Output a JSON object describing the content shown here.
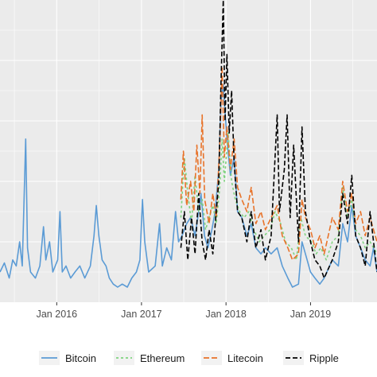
{
  "chart_data": {
    "type": "line",
    "title": "",
    "xlabel": "",
    "ylabel": "",
    "x_range": [
      "2015-05-01",
      "2019-10-15"
    ],
    "ylim": [
      0,
      100
    ],
    "grid": true,
    "background": "#EBEBEB",
    "legend_position": "bottom",
    "x_ticks": [
      {
        "label": "Jan 2016",
        "date": "2016-01-01"
      },
      {
        "label": "Jan 2017",
        "date": "2017-01-01"
      },
      {
        "label": "Jan 2018",
        "date": "2018-01-01"
      },
      {
        "label": "Jan 2019",
        "date": "2019-01-01"
      }
    ],
    "series": [
      {
        "name": "Bitcoin",
        "color": "#5B9BD5",
        "dash": "solid",
        "points": [
          [
            "2015-05-01",
            10
          ],
          [
            "2015-05-20",
            13
          ],
          [
            "2015-06-10",
            8
          ],
          [
            "2015-06-25",
            14
          ],
          [
            "2015-07-10",
            12
          ],
          [
            "2015-07-25",
            20
          ],
          [
            "2015-08-05",
            12
          ],
          [
            "2015-08-20",
            54
          ],
          [
            "2015-08-28",
            18
          ],
          [
            "2015-09-10",
            10
          ],
          [
            "2015-10-01",
            8
          ],
          [
            "2015-10-20",
            12
          ],
          [
            "2015-11-05",
            25
          ],
          [
            "2015-11-15",
            14
          ],
          [
            "2015-12-01",
            20
          ],
          [
            "2015-12-15",
            10
          ],
          [
            "2016-01-05",
            14
          ],
          [
            "2016-01-15",
            30
          ],
          [
            "2016-01-25",
            10
          ],
          [
            "2016-02-10",
            12
          ],
          [
            "2016-03-01",
            8
          ],
          [
            "2016-03-20",
            10
          ],
          [
            "2016-04-10",
            12
          ],
          [
            "2016-05-01",
            8
          ],
          [
            "2016-05-25",
            12
          ],
          [
            "2016-06-10",
            22
          ],
          [
            "2016-06-20",
            32
          ],
          [
            "2016-07-01",
            22
          ],
          [
            "2016-07-15",
            14
          ],
          [
            "2016-08-01",
            12
          ],
          [
            "2016-08-15",
            8
          ],
          [
            "2016-09-01",
            6
          ],
          [
            "2016-09-20",
            5
          ],
          [
            "2016-10-10",
            6
          ],
          [
            "2016-11-01",
            5
          ],
          [
            "2016-11-20",
            8
          ],
          [
            "2016-12-10",
            10
          ],
          [
            "2016-12-25",
            14
          ],
          [
            "2017-01-05",
            34
          ],
          [
            "2017-01-15",
            20
          ],
          [
            "2017-02-01",
            10
          ],
          [
            "2017-03-01",
            12
          ],
          [
            "2017-03-20",
            26
          ],
          [
            "2017-04-01",
            12
          ],
          [
            "2017-04-20",
            18
          ],
          [
            "2017-05-10",
            14
          ],
          [
            "2017-05-28",
            30
          ],
          [
            "2017-06-10",
            20
          ],
          [
            "2017-06-25",
            22
          ],
          [
            "2017-07-15",
            26
          ],
          [
            "2017-08-01",
            28
          ],
          [
            "2017-08-20",
            22
          ],
          [
            "2017-09-05",
            30
          ],
          [
            "2017-09-15",
            36
          ],
          [
            "2017-09-30",
            22
          ],
          [
            "2017-10-15",
            18
          ],
          [
            "2017-11-01",
            24
          ],
          [
            "2017-11-15",
            30
          ],
          [
            "2017-12-01",
            44
          ],
          [
            "2017-12-10",
            66
          ],
          [
            "2017-12-20",
            72
          ],
          [
            "2018-01-05",
            54
          ],
          [
            "2018-01-20",
            42
          ],
          [
            "2018-02-05",
            48
          ],
          [
            "2018-02-20",
            30
          ],
          [
            "2018-03-10",
            28
          ],
          [
            "2018-04-01",
            22
          ],
          [
            "2018-04-20",
            26
          ],
          [
            "2018-05-10",
            18
          ],
          [
            "2018-06-01",
            16
          ],
          [
            "2018-06-20",
            18
          ],
          [
            "2018-07-15",
            16
          ],
          [
            "2018-08-10",
            18
          ],
          [
            "2018-09-01",
            12
          ],
          [
            "2018-09-25",
            8
          ],
          [
            "2018-10-15",
            5
          ],
          [
            "2018-11-10",
            6
          ],
          [
            "2018-11-25",
            20
          ],
          [
            "2018-12-10",
            16
          ],
          [
            "2019-01-01",
            10
          ],
          [
            "2019-01-20",
            8
          ],
          [
            "2019-02-10",
            6
          ],
          [
            "2019-03-01",
            8
          ],
          [
            "2019-04-05",
            14
          ],
          [
            "2019-05-01",
            12
          ],
          [
            "2019-05-20",
            26
          ],
          [
            "2019-06-10",
            20
          ],
          [
            "2019-06-28",
            32
          ],
          [
            "2019-07-15",
            22
          ],
          [
            "2019-08-05",
            18
          ],
          [
            "2019-08-25",
            14
          ],
          [
            "2019-09-15",
            12
          ],
          [
            "2019-09-30",
            18
          ],
          [
            "2019-10-15",
            10
          ]
        ]
      },
      {
        "name": "Ethereum",
        "color": "#7FD37F",
        "dash": "3,3",
        "points": [
          [
            "2017-06-20",
            28
          ],
          [
            "2017-07-05",
            48
          ],
          [
            "2017-07-20",
            36
          ],
          [
            "2017-08-05",
            26
          ],
          [
            "2017-08-20",
            42
          ],
          [
            "2017-09-05",
            30
          ],
          [
            "2017-09-20",
            34
          ],
          [
            "2017-10-05",
            24
          ],
          [
            "2017-10-20",
            28
          ],
          [
            "2017-11-05",
            32
          ],
          [
            "2017-11-20",
            26
          ],
          [
            "2017-12-05",
            38
          ],
          [
            "2017-12-15",
            54
          ],
          [
            "2017-12-25",
            40
          ],
          [
            "2018-01-10",
            56
          ],
          [
            "2018-01-25",
            40
          ],
          [
            "2018-02-10",
            34
          ],
          [
            "2018-03-01",
            30
          ],
          [
            "2018-03-20",
            28
          ],
          [
            "2018-04-10",
            30
          ],
          [
            "2018-05-01",
            24
          ],
          [
            "2018-05-25",
            20
          ],
          [
            "2018-06-15",
            22
          ],
          [
            "2018-07-10",
            24
          ],
          [
            "2018-08-01",
            30
          ],
          [
            "2018-08-25",
            26
          ],
          [
            "2018-09-15",
            20
          ],
          [
            "2018-10-10",
            18
          ],
          [
            "2018-11-01",
            14
          ],
          [
            "2018-11-20",
            28
          ],
          [
            "2018-12-10",
            22
          ],
          [
            "2019-01-05",
            20
          ],
          [
            "2019-01-25",
            16
          ],
          [
            "2019-02-15",
            18
          ],
          [
            "2019-03-10",
            14
          ],
          [
            "2019-04-05",
            20
          ],
          [
            "2019-05-01",
            22
          ],
          [
            "2019-05-20",
            38
          ],
          [
            "2019-06-10",
            28
          ],
          [
            "2019-06-28",
            34
          ],
          [
            "2019-07-15",
            24
          ],
          [
            "2019-08-05",
            22
          ],
          [
            "2019-08-25",
            18
          ],
          [
            "2019-09-15",
            20
          ],
          [
            "2019-10-15",
            16
          ]
        ]
      },
      {
        "name": "Litecoin",
        "color": "#E8732A",
        "dash": "7,3",
        "points": [
          [
            "2017-06-20",
            34
          ],
          [
            "2017-07-01",
            50
          ],
          [
            "2017-07-15",
            32
          ],
          [
            "2017-08-01",
            40
          ],
          [
            "2017-08-15",
            30
          ],
          [
            "2017-08-28",
            52
          ],
          [
            "2017-09-10",
            36
          ],
          [
            "2017-09-20",
            62
          ],
          [
            "2017-10-01",
            34
          ],
          [
            "2017-10-20",
            26
          ],
          [
            "2017-11-05",
            36
          ],
          [
            "2017-11-20",
            28
          ],
          [
            "2017-12-05",
            52
          ],
          [
            "2017-12-15",
            78
          ],
          [
            "2017-12-25",
            48
          ],
          [
            "2018-01-05",
            58
          ],
          [
            "2018-01-20",
            44
          ],
          [
            "2018-02-05",
            54
          ],
          [
            "2018-02-20",
            38
          ],
          [
            "2018-03-10",
            34
          ],
          [
            "2018-04-01",
            30
          ],
          [
            "2018-04-20",
            38
          ],
          [
            "2018-05-10",
            26
          ],
          [
            "2018-06-01",
            30
          ],
          [
            "2018-06-20",
            24
          ],
          [
            "2018-07-15",
            28
          ],
          [
            "2018-08-10",
            32
          ],
          [
            "2018-09-01",
            22
          ],
          [
            "2018-09-25",
            18
          ],
          [
            "2018-10-15",
            14
          ],
          [
            "2018-11-10",
            16
          ],
          [
            "2018-11-25",
            34
          ],
          [
            "2018-12-10",
            28
          ],
          [
            "2019-01-01",
            24
          ],
          [
            "2019-01-20",
            18
          ],
          [
            "2019-02-10",
            22
          ],
          [
            "2019-03-01",
            16
          ],
          [
            "2019-04-05",
            28
          ],
          [
            "2019-05-01",
            24
          ],
          [
            "2019-05-20",
            40
          ],
          [
            "2019-06-10",
            30
          ],
          [
            "2019-06-28",
            36
          ],
          [
            "2019-07-15",
            26
          ],
          [
            "2019-08-05",
            30
          ],
          [
            "2019-08-25",
            22
          ],
          [
            "2019-09-15",
            28
          ],
          [
            "2019-10-15",
            20
          ]
        ]
      },
      {
        "name": "Ripple",
        "color": "#000000",
        "dash": "6,3",
        "points": [
          [
            "2017-06-20",
            18
          ],
          [
            "2017-07-05",
            30
          ],
          [
            "2017-07-20",
            14
          ],
          [
            "2017-08-05",
            28
          ],
          [
            "2017-08-20",
            16
          ],
          [
            "2017-09-05",
            36
          ],
          [
            "2017-09-20",
            20
          ],
          [
            "2017-10-05",
            14
          ],
          [
            "2017-10-20",
            24
          ],
          [
            "2017-11-05",
            16
          ],
          [
            "2017-11-20",
            30
          ],
          [
            "2017-12-01",
            40
          ],
          [
            "2017-12-10",
            72
          ],
          [
            "2017-12-20",
            100
          ],
          [
            "2017-12-28",
            60
          ],
          [
            "2018-01-05",
            82
          ],
          [
            "2018-01-15",
            56
          ],
          [
            "2018-01-25",
            70
          ],
          [
            "2018-02-05",
            46
          ],
          [
            "2018-02-20",
            30
          ],
          [
            "2018-03-10",
            28
          ],
          [
            "2018-04-01",
            20
          ],
          [
            "2018-04-20",
            30
          ],
          [
            "2018-05-10",
            18
          ],
          [
            "2018-06-01",
            24
          ],
          [
            "2018-06-20",
            14
          ],
          [
            "2018-07-15",
            22
          ],
          [
            "2018-08-10",
            62
          ],
          [
            "2018-08-20",
            30
          ],
          [
            "2018-09-10",
            44
          ],
          [
            "2018-09-22",
            62
          ],
          [
            "2018-10-05",
            28
          ],
          [
            "2018-10-20",
            52
          ],
          [
            "2018-11-10",
            20
          ],
          [
            "2018-11-25",
            58
          ],
          [
            "2018-12-10",
            30
          ],
          [
            "2019-01-01",
            20
          ],
          [
            "2019-01-20",
            14
          ],
          [
            "2019-02-10",
            12
          ],
          [
            "2019-03-01",
            8
          ],
          [
            "2019-04-05",
            14
          ],
          [
            "2019-05-01",
            20
          ],
          [
            "2019-05-20",
            36
          ],
          [
            "2019-06-10",
            26
          ],
          [
            "2019-06-28",
            42
          ],
          [
            "2019-07-15",
            22
          ],
          [
            "2019-08-05",
            18
          ],
          [
            "2019-08-25",
            12
          ],
          [
            "2019-09-15",
            30
          ],
          [
            "2019-10-15",
            10
          ]
        ]
      }
    ]
  }
}
